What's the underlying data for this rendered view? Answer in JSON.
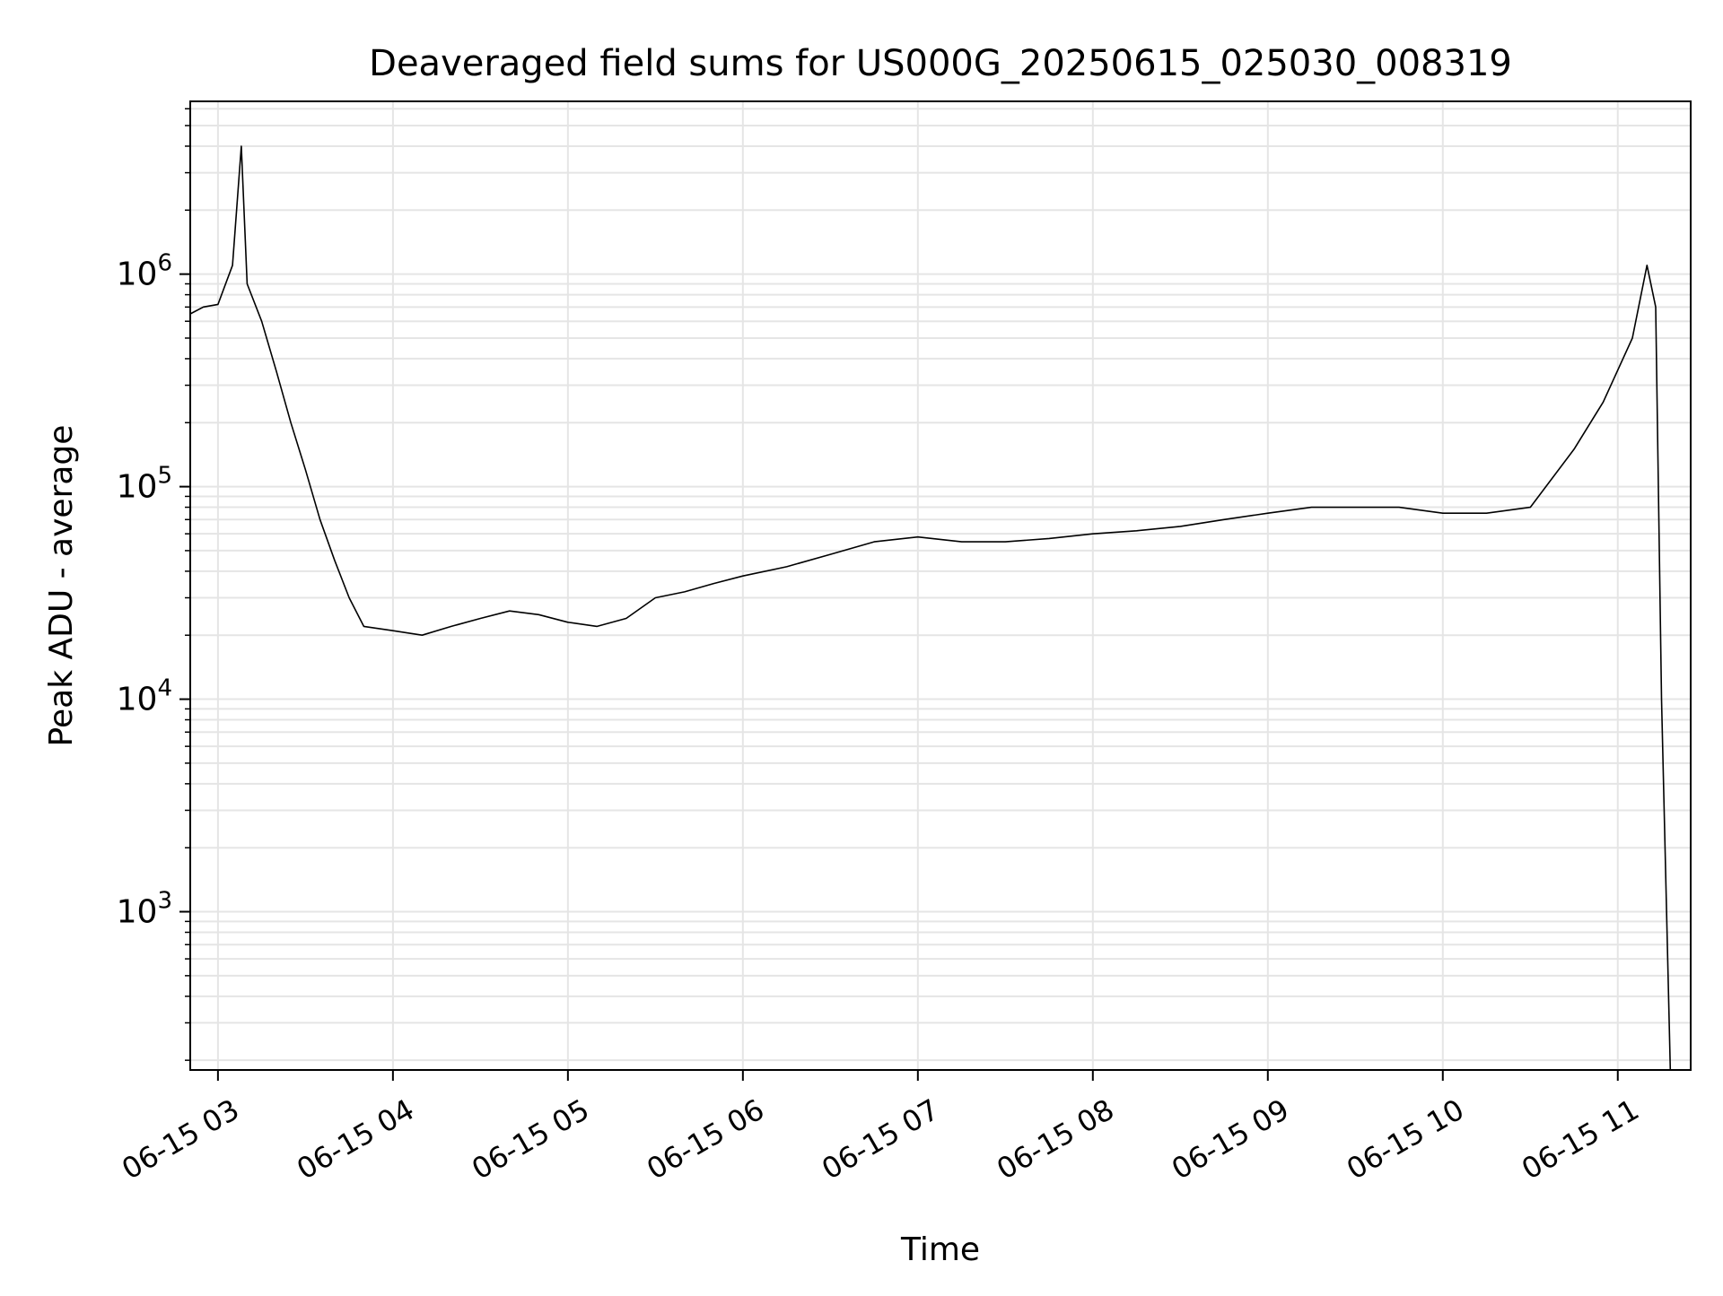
{
  "chart_data": {
    "type": "line",
    "title": "Deaveraged field sums for US000G_20250615_025030_008319",
    "xlabel": "Time",
    "ylabel": "Peak ADU - average",
    "yscale": "log",
    "ylim": [
      180,
      6500000
    ],
    "xlim": [
      "2025-06-15T02:50:30",
      "2025-06-15T11:25:00"
    ],
    "grid": true,
    "line_color": "#000000",
    "grid_color": "#e5e5e5",
    "x_ticks": [
      "06-15 03",
      "06-15 04",
      "06-15 05",
      "06-15 06",
      "06-15 07",
      "06-15 08",
      "06-15 09",
      "06-15 10",
      "06-15 11"
    ],
    "y_ticks": [
      {
        "base": "10",
        "exp": "3",
        "value": 1000
      },
      {
        "base": "10",
        "exp": "4",
        "value": 10000
      },
      {
        "base": "10",
        "exp": "5",
        "value": 100000
      },
      {
        "base": "10",
        "exp": "6",
        "value": 1000000
      }
    ],
    "series": [
      {
        "x": [
          "2025-06-15T02:50:30",
          "2025-06-15T02:55:00",
          "2025-06-15T03:00:00",
          "2025-06-15T03:05:00",
          "2025-06-15T03:08:00",
          "2025-06-15T03:10:00",
          "2025-06-15T03:15:00",
          "2025-06-15T03:20:00",
          "2025-06-15T03:25:00",
          "2025-06-15T03:30:00",
          "2025-06-15T03:35:00",
          "2025-06-15T03:40:00",
          "2025-06-15T03:45:00",
          "2025-06-15T03:50:00",
          "2025-06-15T04:00:00",
          "2025-06-15T04:10:00",
          "2025-06-15T04:20:00",
          "2025-06-15T04:30:00",
          "2025-06-15T04:40:00",
          "2025-06-15T04:50:00",
          "2025-06-15T05:00:00",
          "2025-06-15T05:10:00",
          "2025-06-15T05:20:00",
          "2025-06-15T05:30:00",
          "2025-06-15T05:40:00",
          "2025-06-15T05:50:00",
          "2025-06-15T06:00:00",
          "2025-06-15T06:15:00",
          "2025-06-15T06:30:00",
          "2025-06-15T06:45:00",
          "2025-06-15T07:00:00",
          "2025-06-15T07:15:00",
          "2025-06-15T07:30:00",
          "2025-06-15T07:45:00",
          "2025-06-15T08:00:00",
          "2025-06-15T08:15:00",
          "2025-06-15T08:30:00",
          "2025-06-15T08:45:00",
          "2025-06-15T09:00:00",
          "2025-06-15T09:15:00",
          "2025-06-15T09:30:00",
          "2025-06-15T09:45:00",
          "2025-06-15T10:00:00",
          "2025-06-15T10:15:00",
          "2025-06-15T10:30:00",
          "2025-06-15T10:45:00",
          "2025-06-15T10:55:00",
          "2025-06-15T11:05:00",
          "2025-06-15T11:10:00",
          "2025-06-15T11:13:00",
          "2025-06-15T11:15:00",
          "2025-06-15T11:18:00"
        ],
        "values": [
          650000,
          700000,
          720000,
          1100000,
          4000000,
          900000,
          600000,
          350000,
          200000,
          120000,
          70000,
          45000,
          30000,
          22000,
          21000,
          20000,
          22000,
          24000,
          26000,
          25000,
          23000,
          22000,
          24000,
          30000,
          32000,
          35000,
          38000,
          42000,
          48000,
          55000,
          58000,
          55000,
          55000,
          57000,
          60000,
          62000,
          65000,
          70000,
          75000,
          80000,
          80000,
          80000,
          75000,
          75000,
          80000,
          150000,
          250000,
          500000,
          1100000,
          700000,
          10000,
          180
        ]
      }
    ]
  }
}
